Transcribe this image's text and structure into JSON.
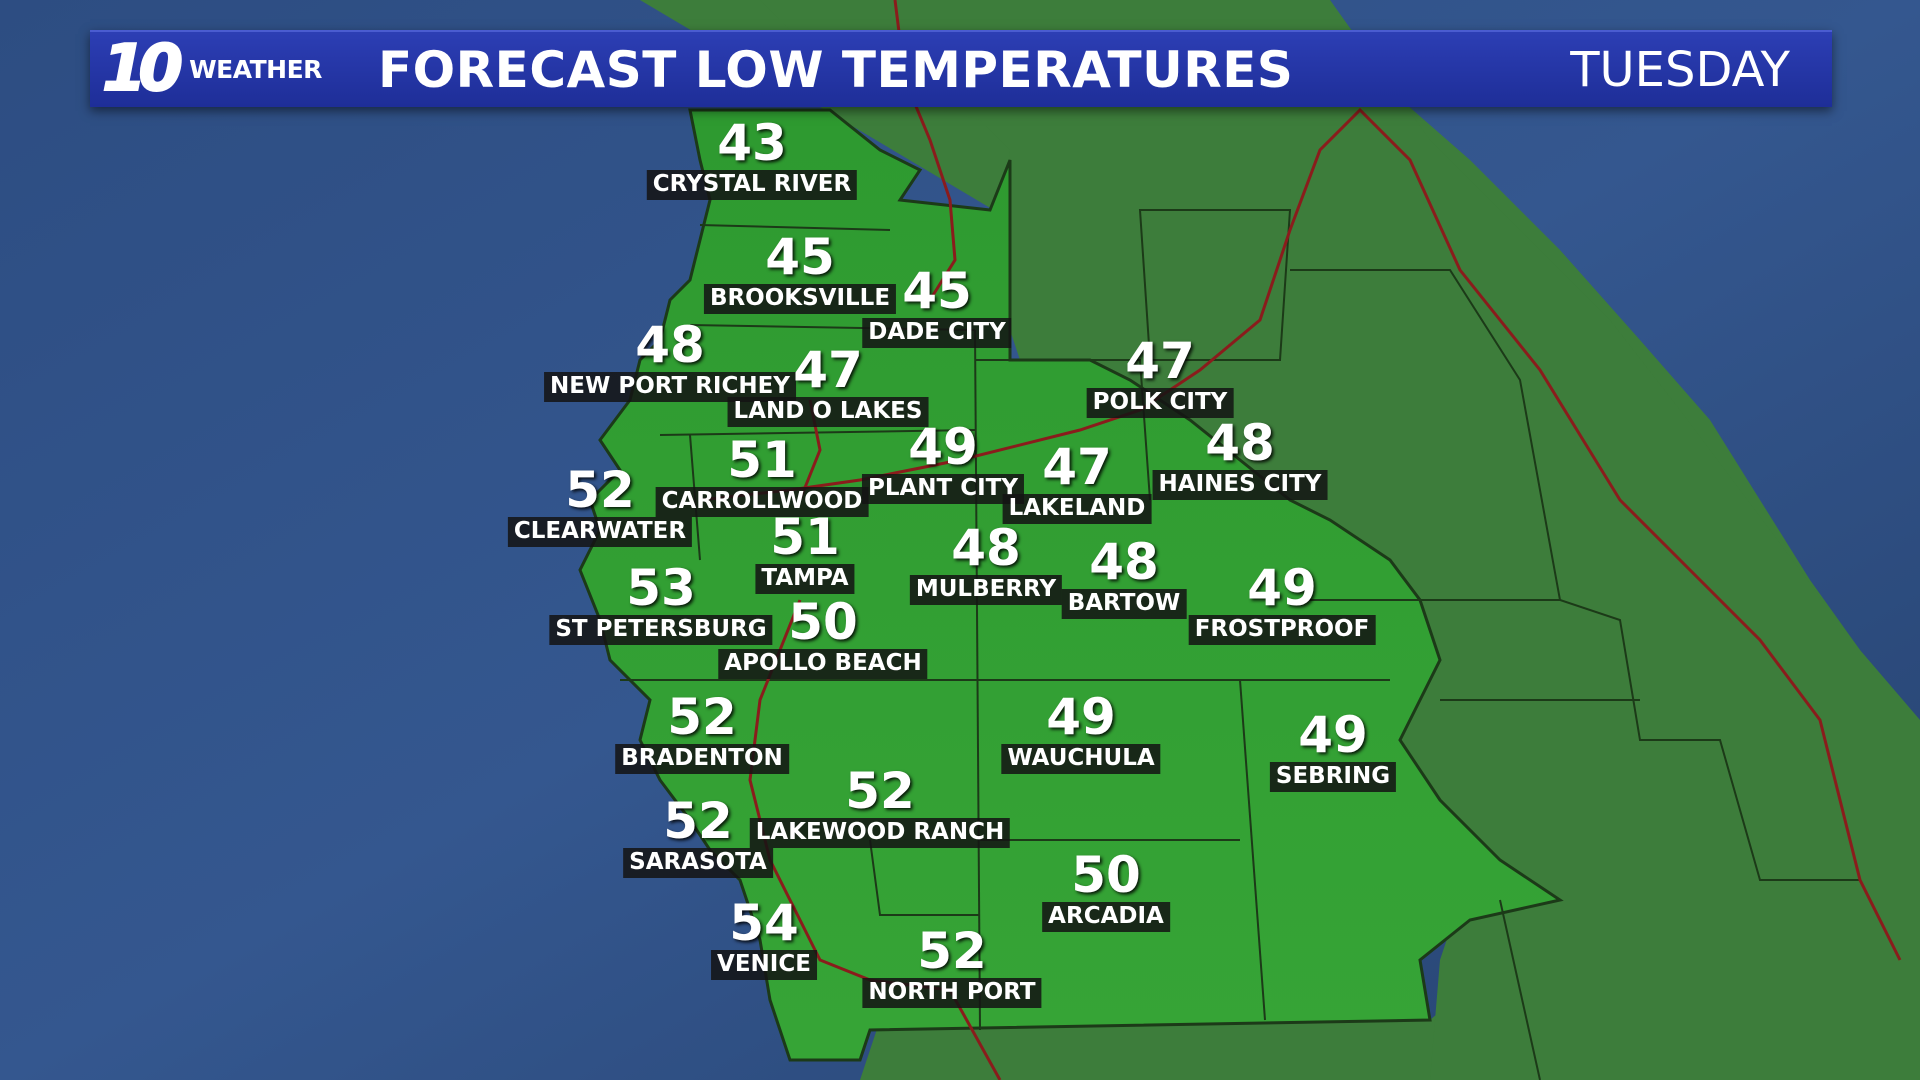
{
  "header": {
    "logo_number": "10",
    "logo_word": "WEATHER",
    "title": "FORECAST LOW TEMPERATURES",
    "day": "TUESDAY"
  },
  "colors": {
    "header_blue": "#2236a8",
    "ocean": "#2b4a80",
    "forecast_land": "#2f9a2e",
    "other_land": "#3a7a3a",
    "highway": "#8a1c1c"
  },
  "cities": [
    {
      "name": "CRYSTAL RIVER",
      "temp": "43"
    },
    {
      "name": "BROOKSVILLE",
      "temp": "45"
    },
    {
      "name": "DADE CITY",
      "temp": "45"
    },
    {
      "name": "NEW PORT RICHEY",
      "temp": "48"
    },
    {
      "name": "LAND O LAKES",
      "temp": "47"
    },
    {
      "name": "POLK CITY",
      "temp": "47"
    },
    {
      "name": "CARROLLWOOD",
      "temp": "51"
    },
    {
      "name": "PLANT CITY",
      "temp": "49"
    },
    {
      "name": "LAKELAND",
      "temp": "47"
    },
    {
      "name": "HAINES CITY",
      "temp": "48"
    },
    {
      "name": "CLEARWATER",
      "temp": "52"
    },
    {
      "name": "TAMPA",
      "temp": "51"
    },
    {
      "name": "MULBERRY",
      "temp": "48"
    },
    {
      "name": "BARTOW",
      "temp": "48"
    },
    {
      "name": "ST PETERSBURG",
      "temp": "53"
    },
    {
      "name": "APOLLO BEACH",
      "temp": "50"
    },
    {
      "name": "FROSTPROOF",
      "temp": "49"
    },
    {
      "name": "BRADENTON",
      "temp": "52"
    },
    {
      "name": "WAUCHULA",
      "temp": "49"
    },
    {
      "name": "SEBRING",
      "temp": "49"
    },
    {
      "name": "LAKEWOOD RANCH",
      "temp": "52"
    },
    {
      "name": "SARASOTA",
      "temp": "52"
    },
    {
      "name": "ARCADIA",
      "temp": "50"
    },
    {
      "name": "VENICE",
      "temp": "54"
    },
    {
      "name": "NORTH PORT",
      "temp": "52"
    }
  ]
}
